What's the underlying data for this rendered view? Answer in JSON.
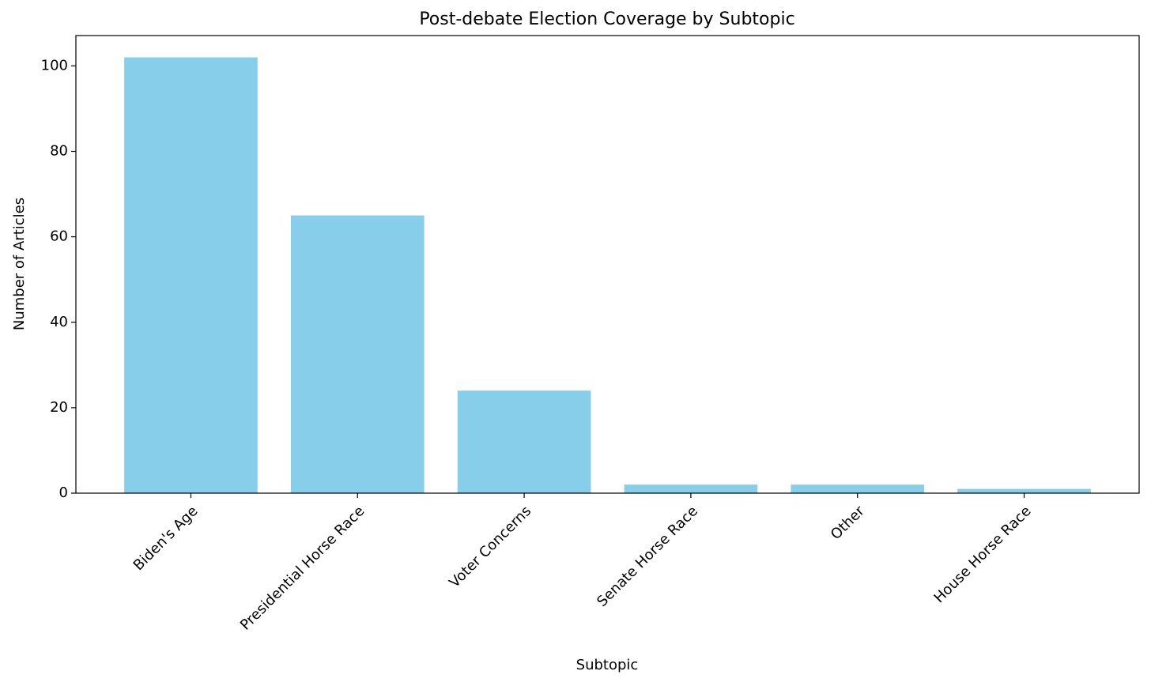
{
  "chart_data": {
    "type": "bar",
    "title": "Post-debate Election Coverage by Subtopic",
    "xlabel": "Subtopic",
    "ylabel": "Number of Articles",
    "categories": [
      "Biden's Age",
      "Presidential Horse Race",
      "Voter Concerns",
      "Senate Horse Race",
      "Other",
      "House Horse Race"
    ],
    "values": [
      102,
      65,
      24,
      2,
      2,
      1
    ],
    "color": "#87ceeb",
    "ylim": [
      0,
      107.1
    ],
    "yticks": [
      0,
      20,
      40,
      60,
      80,
      100
    ],
    "grid": false
  }
}
